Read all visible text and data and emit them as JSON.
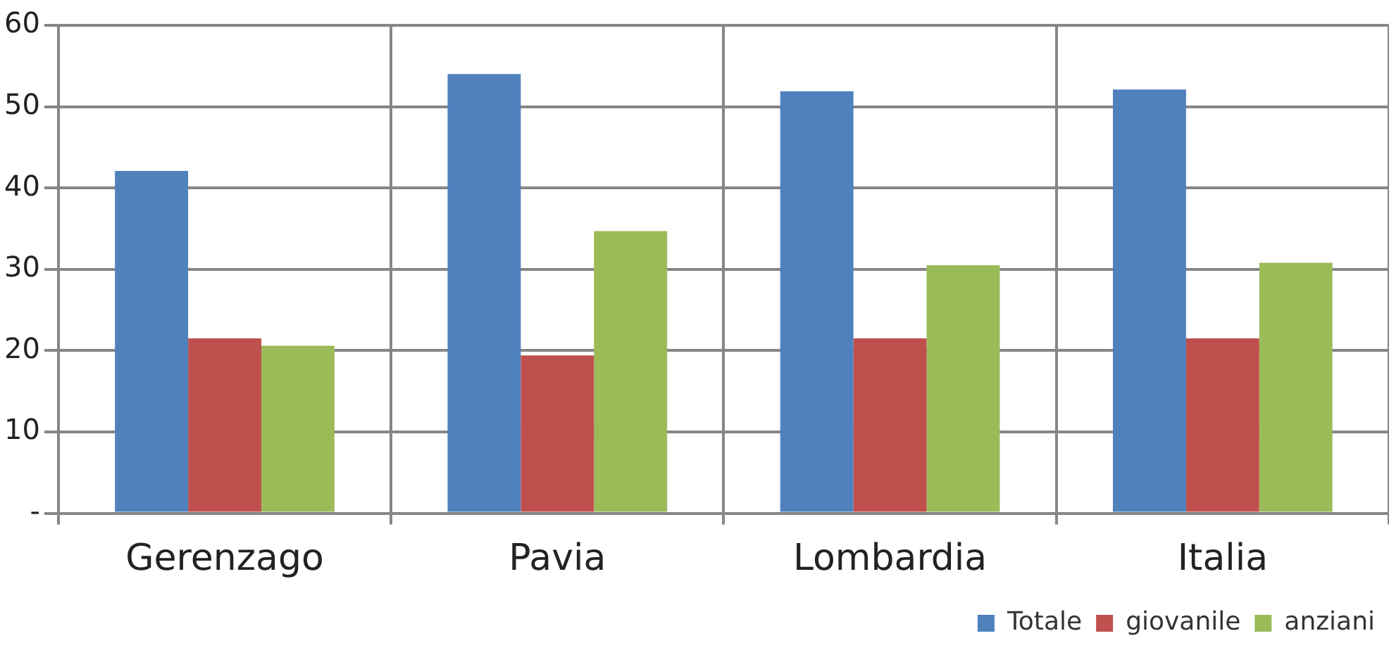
{
  "chart_data": {
    "type": "bar",
    "categories": [
      "Gerenzago",
      "Pavia",
      "Lombardia",
      "Italia"
    ],
    "series": [
      {
        "name": "Totale",
        "color": "#4f81bd",
        "values": [
          42.1,
          54.0,
          51.9,
          52.1
        ]
      },
      {
        "name": "giovanile",
        "color": "#c0504d",
        "values": [
          21.5,
          19.4,
          21.5,
          21.5
        ]
      },
      {
        "name": "anziani",
        "color": "#9bbb59",
        "values": [
          20.6,
          34.7,
          30.5,
          30.8
        ]
      }
    ],
    "ylim": [
      0,
      60
    ],
    "yticks": [
      {
        "value": 0,
        "label": "-"
      },
      10,
      20,
      30,
      40,
      50,
      60
    ],
    "grid": true,
    "legend": "bottom right"
  }
}
